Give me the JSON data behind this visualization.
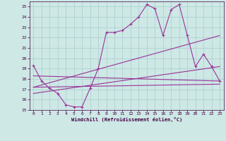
{
  "xlabel": "Windchill (Refroidissement éolien,°C)",
  "bg_color": "#cde8e5",
  "line_color": "#993399",
  "grid_color": "#aacccc",
  "x_values": [
    0,
    1,
    2,
    3,
    4,
    5,
    6,
    7,
    8,
    9,
    10,
    11,
    12,
    13,
    14,
    15,
    16,
    17,
    18,
    19,
    20,
    21,
    22,
    23
  ],
  "series1": [
    19.3,
    17.8,
    17.1,
    16.6,
    15.5,
    15.3,
    15.3,
    17.1,
    19.0,
    22.5,
    22.5,
    22.7,
    23.3,
    24.0,
    25.2,
    24.8,
    22.2,
    24.7,
    25.2,
    22.2,
    19.2,
    20.4,
    19.2,
    17.8
  ],
  "line2_x": [
    0,
    23
  ],
  "line2_y": [
    18.3,
    17.8
  ],
  "line3_x": [
    0,
    23
  ],
  "line3_y": [
    17.2,
    17.5
  ],
  "line4_x": [
    0,
    23
  ],
  "line4_y": [
    16.6,
    19.2
  ],
  "line5_x": [
    0,
    23
  ],
  "line5_y": [
    17.2,
    22.2
  ],
  "ylim": [
    15,
    25.5
  ],
  "xlim": [
    -0.5,
    23.5
  ],
  "yticks": [
    15,
    16,
    17,
    18,
    19,
    20,
    21,
    22,
    23,
    24,
    25
  ],
  "xticks": [
    0,
    1,
    2,
    3,
    4,
    5,
    6,
    7,
    8,
    9,
    10,
    11,
    12,
    13,
    14,
    15,
    16,
    17,
    18,
    19,
    20,
    21,
    22,
    23
  ]
}
